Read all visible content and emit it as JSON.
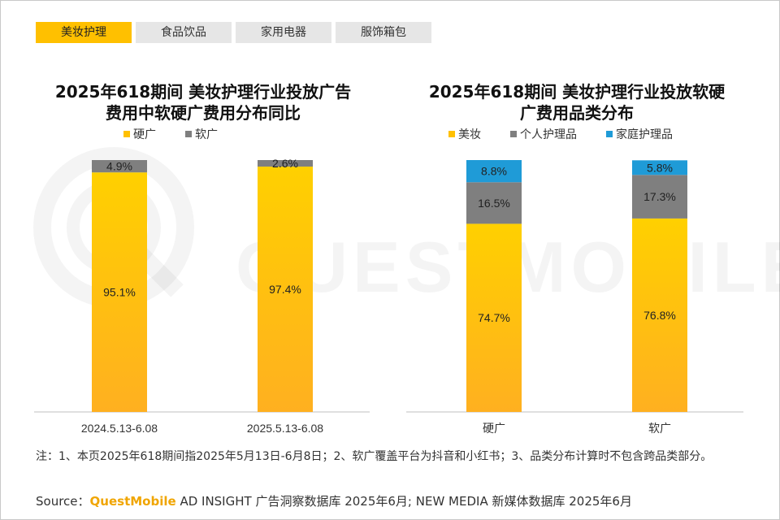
{
  "tabs": [
    {
      "label": "美妆护理",
      "active": true
    },
    {
      "label": "食品饮品",
      "active": false
    },
    {
      "label": "家用电器",
      "active": false
    },
    {
      "label": "服饰箱包",
      "active": false
    }
  ],
  "watermark": "QUESTMOBILE",
  "colors": {
    "accent": "#ffc000",
    "gray": "#7f7f7f",
    "blue": "#1f9bd7"
  },
  "chart_data": [
    {
      "type": "bar",
      "stacked": true,
      "title_line1": "2025年618期间 美妆护理行业投放广告",
      "title_line2": "费用中软硬广费用分布同比",
      "categories": [
        "2024.5.13-6.08",
        "2025.5.13-6.08"
      ],
      "series": [
        {
          "name": "硬广",
          "color": "#ffc000",
          "values": [
            95.1,
            97.4
          ],
          "labels": [
            "95.1%",
            "97.4%"
          ]
        },
        {
          "name": "软广",
          "color": "#7f7f7f",
          "values": [
            4.9,
            2.6
          ],
          "labels": [
            "4.9%",
            "2.6%"
          ]
        }
      ],
      "ylim": [
        0,
        100
      ]
    },
    {
      "type": "bar",
      "stacked": true,
      "title_line1": "2025年618期间 美妆护理行业投放软硬",
      "title_line2": "广费用品类分布",
      "categories": [
        "硬广",
        "软广"
      ],
      "series": [
        {
          "name": "美妆",
          "color": "#ffc000",
          "values": [
            74.7,
            76.8
          ],
          "labels": [
            "74.7%",
            "76.8%"
          ]
        },
        {
          "name": "个人护理品",
          "color": "#7f7f7f",
          "values": [
            16.5,
            17.3
          ],
          "labels": [
            "16.5%",
            "17.3%"
          ]
        },
        {
          "name": "家庭护理品",
          "color": "#1f9bd7",
          "values": [
            8.8,
            5.8
          ],
          "labels": [
            "8.8%",
            "5.8%"
          ]
        }
      ],
      "ylim": [
        0,
        100
      ]
    }
  ],
  "note": "注：1、本页2025年618期间指2025年5月13日-6月8日；2、软广覆盖平台为抖音和小红书；3、品类分布计算时不包含跨品类部分。",
  "source": {
    "prefix": "Source：",
    "brand": "QuestMobile",
    "suffix": " AD INSIGHT 广告洞察数据库 2025年6月; NEW MEDIA 新媒体数据库 2025年6月"
  }
}
